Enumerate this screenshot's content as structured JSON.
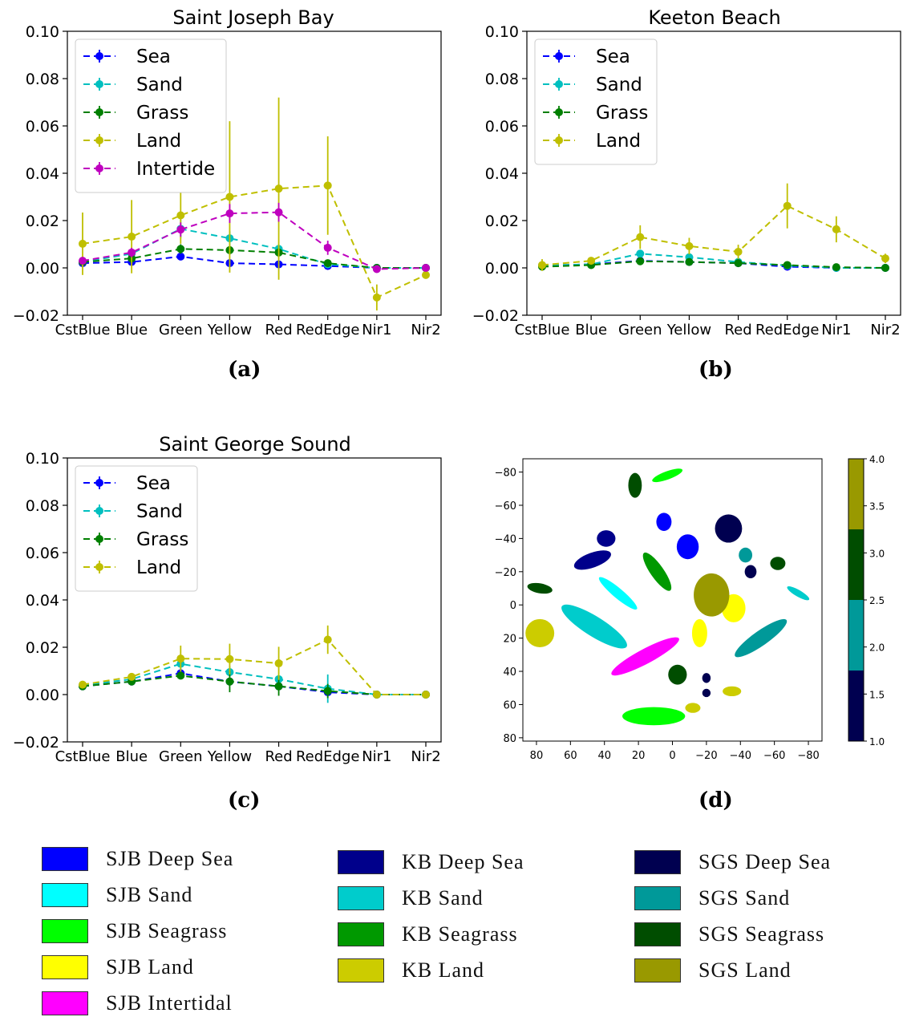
{
  "chart_data": [
    {
      "id": "a",
      "type": "line",
      "title": "Saint Joseph Bay",
      "panel_label": "(a)",
      "categories": [
        "CstBlue",
        "Blue",
        "Green",
        "Yellow",
        "Red",
        "RedEdge",
        "Nir1",
        "Nir2"
      ],
      "ylim": [
        -0.02,
        0.1
      ],
      "yticks": [
        "0.10",
        "0.08",
        "0.06",
        "0.04",
        "0.02",
        "0.00",
        "−0.02"
      ],
      "legend_position": "top-left",
      "series": [
        {
          "name": "Sea",
          "color": "#0000ff",
          "values": [
            0.002,
            0.0025,
            0.0048,
            0.002,
            0.0015,
            0.0008,
            0.0,
            0.0
          ],
          "err": [
            0.0005,
            0.001,
            0.0015,
            0.001,
            0.001,
            0.0005,
            0.0005,
            0.0
          ]
        },
        {
          "name": "Sand",
          "color": "#00bfbf",
          "values": [
            0.0025,
            0.006,
            0.0165,
            0.0125,
            0.008,
            0.0015,
            0.0,
            0.0
          ],
          "err": [
            0.001,
            0.002,
            0.004,
            0.003,
            0.002,
            0.001,
            0.0005,
            0.0
          ]
        },
        {
          "name": "Grass",
          "color": "#007f00",
          "values": [
            0.0025,
            0.004,
            0.008,
            0.0075,
            0.0065,
            0.002,
            0.0,
            0.0
          ],
          "err": [
            0.001,
            0.0015,
            0.002,
            0.002,
            0.002,
            0.001,
            0.0005,
            0.0
          ]
        },
        {
          "name": "Land",
          "color": "#bfbf00",
          "values": [
            0.0102,
            0.0132,
            0.0222,
            0.03,
            0.0335,
            0.0348,
            -0.0125,
            -0.003
          ],
          "err": [
            0.0132,
            0.0155,
            0.012,
            0.032,
            0.0385,
            0.0208,
            0.0055,
            0.001
          ]
        },
        {
          "name": "Intertide",
          "color": "#bf00bf",
          "values": [
            0.003,
            0.0065,
            0.0162,
            0.023,
            0.0235,
            0.0085,
            -0.0005,
            0.0
          ],
          "err": [
            0.001,
            0.002,
            0.003,
            0.004,
            0.004,
            0.003,
            0.001,
            0.0
          ]
        }
      ]
    },
    {
      "id": "b",
      "type": "line",
      "title": "Keeton Beach",
      "panel_label": "(b)",
      "categories": [
        "CstBlue",
        "Blue",
        "Green",
        "Yellow",
        "Red",
        "RedEdge",
        "Nir1",
        "Nir2"
      ],
      "ylim": [
        -0.02,
        0.1
      ],
      "yticks": [
        "0.10",
        "0.08",
        "0.06",
        "0.04",
        "0.02",
        "0.00",
        "−0.02"
      ],
      "legend_position": "top-left",
      "series": [
        {
          "name": "Sea",
          "color": "#0000ff",
          "values": [
            0.001,
            0.0015,
            0.003,
            0.0025,
            0.002,
            0.0005,
            0.0,
            0.0
          ],
          "err": [
            0.0005,
            0.0005,
            0.001,
            0.001,
            0.0005,
            0.0005,
            0.0,
            0.0
          ]
        },
        {
          "name": "Sand",
          "color": "#00bfbf",
          "values": [
            0.001,
            0.0015,
            0.006,
            0.0045,
            0.0025,
            0.001,
            0.0,
            0.0
          ],
          "err": [
            0.0005,
            0.0005,
            0.0015,
            0.001,
            0.001,
            0.0005,
            0.0,
            0.0
          ]
        },
        {
          "name": "Grass",
          "color": "#007f00",
          "values": [
            0.0005,
            0.0012,
            0.0028,
            0.0025,
            0.002,
            0.0012,
            0.0003,
            0.0
          ],
          "err": [
            0.0005,
            0.0005,
            0.001,
            0.001,
            0.0005,
            0.0005,
            0.0,
            0.0
          ]
        },
        {
          "name": "Land",
          "color": "#bfbf00",
          "values": [
            0.0012,
            0.003,
            0.013,
            0.0092,
            0.0068,
            0.0262,
            0.0163,
            0.004
          ],
          "err": [
            0.0025,
            0.0015,
            0.005,
            0.0035,
            0.003,
            0.0095,
            0.0055,
            0.002
          ]
        }
      ]
    },
    {
      "id": "c",
      "type": "line",
      "title": "Saint George Sound",
      "panel_label": "(c)",
      "categories": [
        "CstBlue",
        "Blue",
        "Green",
        "Yellow",
        "Red",
        "RedEdge",
        "Nir1",
        "Nir2"
      ],
      "ylim": [
        -0.02,
        0.1
      ],
      "yticks": [
        "0.10",
        "0.08",
        "0.06",
        "0.04",
        "0.02",
        "0.00",
        "−0.02"
      ],
      "legend_position": "top-left",
      "series": [
        {
          "name": "Sea",
          "color": "#0000ff",
          "values": [
            0.0035,
            0.0055,
            0.009,
            0.0055,
            0.0035,
            0.001,
            0.0,
            0.0
          ],
          "err": [
            0.0005,
            0.001,
            0.002,
            0.0015,
            0.001,
            0.001,
            0.0,
            0.0
          ]
        },
        {
          "name": "Sand",
          "color": "#00bfbf",
          "values": [
            0.004,
            0.0065,
            0.013,
            0.0095,
            0.0065,
            0.0025,
            0.0,
            0.0
          ],
          "err": [
            0.001,
            0.0015,
            0.0025,
            0.0025,
            0.002,
            0.006,
            0.0,
            0.0
          ]
        },
        {
          "name": "Grass",
          "color": "#007f00",
          "values": [
            0.0035,
            0.0055,
            0.008,
            0.0055,
            0.0035,
            0.0015,
            0.0,
            0.0
          ],
          "err": [
            0.0005,
            0.001,
            0.0015,
            0.0045,
            0.004,
            0.003,
            0.0,
            0.0
          ]
        },
        {
          "name": "Land",
          "color": "#bfbf00",
          "values": [
            0.0042,
            0.0075,
            0.0152,
            0.015,
            0.0132,
            0.0232,
            0.0,
            0.0
          ],
          "err": [
            0.001,
            0.0015,
            0.0055,
            0.0065,
            0.007,
            0.006,
            0.0,
            0.0
          ]
        }
      ]
    },
    {
      "id": "d",
      "type": "scatter",
      "title": "",
      "panel_label": "(d)",
      "xlim": [
        88,
        -88
      ],
      "ylim": [
        -88,
        82
      ],
      "xticks": [
        80,
        60,
        40,
        20,
        0,
        -20,
        -40,
        -60,
        -80
      ],
      "yticks": [
        -80,
        -60,
        -40,
        -20,
        0,
        20,
        40,
        60,
        80
      ],
      "colorbar": {
        "range": [
          1.0,
          4.0
        ],
        "ticks": [
          "1.0",
          "1.5",
          "2.0",
          "2.5",
          "3.0",
          "3.5",
          "4.0"
        ],
        "colors": [
          "#000050",
          "#009999",
          "#004d00",
          "#999900"
        ]
      },
      "clusters": [
        {
          "class": "SJB Deep Sea",
          "color": "#0000ff",
          "x": 5,
          "y": -50,
          "w": 8,
          "h": 10,
          "angle": 0
        },
        {
          "class": "SJB Deep Sea",
          "color": "#0000ff",
          "x": -9,
          "y": -35,
          "w": 12,
          "h": 14,
          "angle": 0
        },
        {
          "class": "SJB Sand",
          "color": "#00ffff",
          "x": 32,
          "y": -7,
          "w": 28,
          "h": 5,
          "angle": 40
        },
        {
          "class": "SJB Seagrass",
          "color": "#00ff00",
          "x": 3,
          "y": -78,
          "w": 18,
          "h": 4,
          "angle": -20
        },
        {
          "class": "SJB Seagrass",
          "color": "#00ff00",
          "x": 11,
          "y": 67,
          "w": 36,
          "h": 10,
          "angle": 0
        },
        {
          "class": "SJB Land",
          "color": "#ffff00",
          "x": -36,
          "y": 2,
          "w": 13,
          "h": 16,
          "angle": 0
        },
        {
          "class": "SJB Land",
          "color": "#ffff00",
          "x": -16,
          "y": 17,
          "w": 8,
          "h": 16,
          "angle": 0
        },
        {
          "class": "SJB Intertidal",
          "color": "#ff00ff",
          "x": 16,
          "y": 31,
          "w": 44,
          "h": 8,
          "angle": -28
        },
        {
          "class": "KB Deep Sea",
          "color": "#00008b",
          "x": 47,
          "y": -27,
          "w": 22,
          "h": 8,
          "angle": -20
        },
        {
          "class": "KB Deep Sea",
          "color": "#00008b",
          "x": 39,
          "y": -40,
          "w": 10,
          "h": 9,
          "angle": 0
        },
        {
          "class": "KB Sand",
          "color": "#00cccc",
          "x": 46,
          "y": 13,
          "w": 44,
          "h": 11,
          "angle": 32
        },
        {
          "class": "KB Sand",
          "color": "#00cccc",
          "x": -74,
          "y": -7,
          "w": 14,
          "h": 3,
          "angle": 30
        },
        {
          "class": "KB Seagrass",
          "color": "#009900",
          "x": 9,
          "y": -20,
          "w": 26,
          "h": 7,
          "angle": 55
        },
        {
          "class": "KB Land",
          "color": "#cccc00",
          "x": 78,
          "y": 17,
          "w": 16,
          "h": 16,
          "angle": 0
        },
        {
          "class": "KB Land",
          "color": "#cccc00",
          "x": -35,
          "y": 52,
          "w": 10,
          "h": 5,
          "angle": 0
        },
        {
          "class": "KB Land",
          "color": "#cccc00",
          "x": -12,
          "y": 62,
          "w": 8,
          "h": 5,
          "angle": 0
        },
        {
          "class": "SGS Deep Sea",
          "color": "#000050",
          "x": -33,
          "y": -46,
          "w": 15,
          "h": 16,
          "angle": 0
        },
        {
          "class": "SGS Deep Sea",
          "color": "#000050",
          "x": -46,
          "y": -20,
          "w": 6,
          "h": 7,
          "angle": 0
        },
        {
          "class": "SGS Deep Sea",
          "color": "#000050",
          "x": -20,
          "y": 44,
          "w": 4,
          "h": 5,
          "angle": 0
        },
        {
          "class": "SGS Deep Sea",
          "color": "#000050",
          "x": -20,
          "y": 53,
          "w": 4,
          "h": 4,
          "angle": 0
        },
        {
          "class": "SGS Sand",
          "color": "#009999",
          "x": -43,
          "y": -30,
          "w": 7,
          "h": 8,
          "angle": 0
        },
        {
          "class": "SGS Sand",
          "color": "#009999",
          "x": -52,
          "y": 20,
          "w": 36,
          "h": 8,
          "angle": -35
        },
        {
          "class": "SGS Seagrass",
          "color": "#004d00",
          "x": 22,
          "y": -72,
          "w": 7,
          "h": 14,
          "angle": 0
        },
        {
          "class": "SGS Seagrass",
          "color": "#004d00",
          "x": -62,
          "y": -25,
          "w": 8,
          "h": 7,
          "angle": 0
        },
        {
          "class": "SGS Seagrass",
          "color": "#004d00",
          "x": 78,
          "y": -10,
          "w": 14,
          "h": 5,
          "angle": 10
        },
        {
          "class": "SGS Seagrass",
          "color": "#004d00",
          "x": -3,
          "y": 42,
          "w": 10,
          "h": 11,
          "angle": 0
        },
        {
          "class": "SGS Land",
          "color": "#999900",
          "x": -23,
          "y": -6,
          "w": 20,
          "h": 25,
          "angle": 0
        }
      ]
    }
  ],
  "class_legend": [
    {
      "label": "SJB Deep Sea",
      "color": "#0000ff"
    },
    {
      "label": "SJB Sand",
      "color": "#00ffff"
    },
    {
      "label": "SJB Seagrass",
      "color": "#00ff00"
    },
    {
      "label": "SJB Land",
      "color": "#ffff00"
    },
    {
      "label": "SJB Intertidal",
      "color": "#ff00ff"
    },
    {
      "label": "KB Deep Sea",
      "color": "#00008b"
    },
    {
      "label": "KB Sand",
      "color": "#00cccc"
    },
    {
      "label": "KB Seagrass",
      "color": "#009900"
    },
    {
      "label": "KB Land",
      "color": "#cccc00"
    },
    {
      "label": "SGS Deep Sea",
      "color": "#000050"
    },
    {
      "label": "SGS Sand",
      "color": "#009999"
    },
    {
      "label": "SGS Seagrass",
      "color": "#004d00"
    },
    {
      "label": "SGS Land",
      "color": "#999900"
    }
  ]
}
